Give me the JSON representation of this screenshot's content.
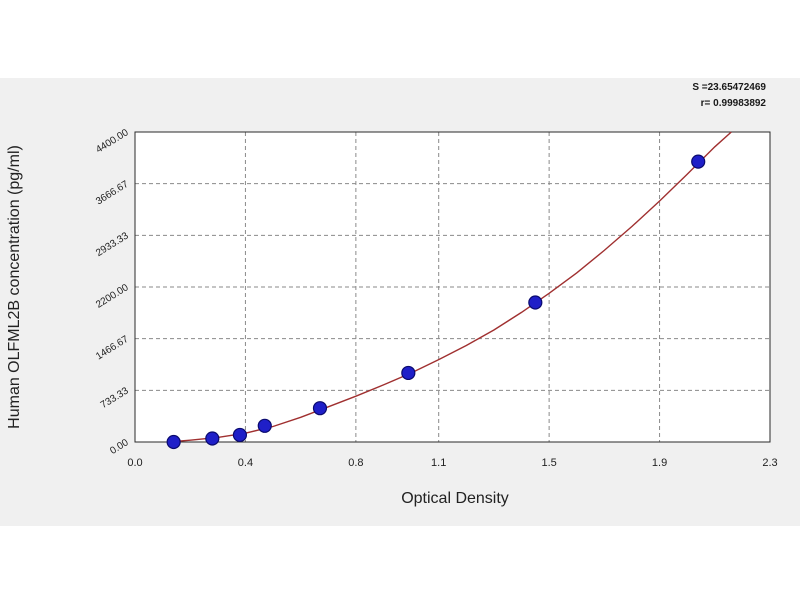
{
  "stats": {
    "s_line": "S =23.65472469",
    "r_line": "r= 0.99983892"
  },
  "chart_data": {
    "type": "scatter",
    "title": "",
    "xlabel": "Optical Density",
    "ylabel": "Human OLFML2B concentration (pg/ml)",
    "xlim": [
      0.0,
      2.3
    ],
    "ylim": [
      0.0,
      4400.0
    ],
    "x_ticks": [
      0.0,
      0.4,
      0.8,
      1.1,
      1.5,
      1.9,
      2.3
    ],
    "x_tick_labels": [
      "0.0",
      "0.4",
      "0.8",
      "1.1",
      "1.5",
      "1.9",
      "2.3"
    ],
    "y_ticks": [
      0,
      733.33,
      1466.67,
      2200,
      2933.33,
      3666.67,
      4400
    ],
    "y_tick_labels": [
      "0.00",
      "733.33",
      "1466.67",
      "2200.00",
      "2933.33",
      "3666.67",
      "4400.00"
    ],
    "grid": true,
    "series": [
      {
        "points": [
          {
            "x": 0.14,
            "y": 0
          },
          {
            "x": 0.28,
            "y": 50
          },
          {
            "x": 0.38,
            "y": 100
          },
          {
            "x": 0.47,
            "y": 230
          },
          {
            "x": 0.67,
            "y": 480
          },
          {
            "x": 0.99,
            "y": 980
          },
          {
            "x": 1.45,
            "y": 1980
          },
          {
            "x": 2.04,
            "y": 3980
          }
        ]
      }
    ],
    "fit_curve": [
      {
        "x": 0.12,
        "y": 0
      },
      {
        "x": 0.2,
        "y": 25
      },
      {
        "x": 0.3,
        "y": 65
      },
      {
        "x": 0.4,
        "y": 125
      },
      {
        "x": 0.5,
        "y": 220
      },
      {
        "x": 0.6,
        "y": 350
      },
      {
        "x": 0.7,
        "y": 500
      },
      {
        "x": 0.8,
        "y": 650
      },
      {
        "x": 0.9,
        "y": 810
      },
      {
        "x": 1.0,
        "y": 980
      },
      {
        "x": 1.1,
        "y": 1170
      },
      {
        "x": 1.2,
        "y": 1370
      },
      {
        "x": 1.3,
        "y": 1590
      },
      {
        "x": 1.4,
        "y": 1840
      },
      {
        "x": 1.5,
        "y": 2110
      },
      {
        "x": 1.6,
        "y": 2400
      },
      {
        "x": 1.7,
        "y": 2720
      },
      {
        "x": 1.8,
        "y": 3060
      },
      {
        "x": 1.9,
        "y": 3420
      },
      {
        "x": 2.0,
        "y": 3800
      },
      {
        "x": 2.1,
        "y": 4190
      },
      {
        "x": 2.16,
        "y": 4400
      }
    ],
    "colors": {
      "point": "#1f1fc8",
      "point_edge": "#0a0a6e",
      "curve": "#a03030",
      "grid": "#8a8a8a",
      "axis": "#2a2a2a",
      "panel": "#f0f0f0",
      "plot_area": "#ffffff"
    }
  }
}
